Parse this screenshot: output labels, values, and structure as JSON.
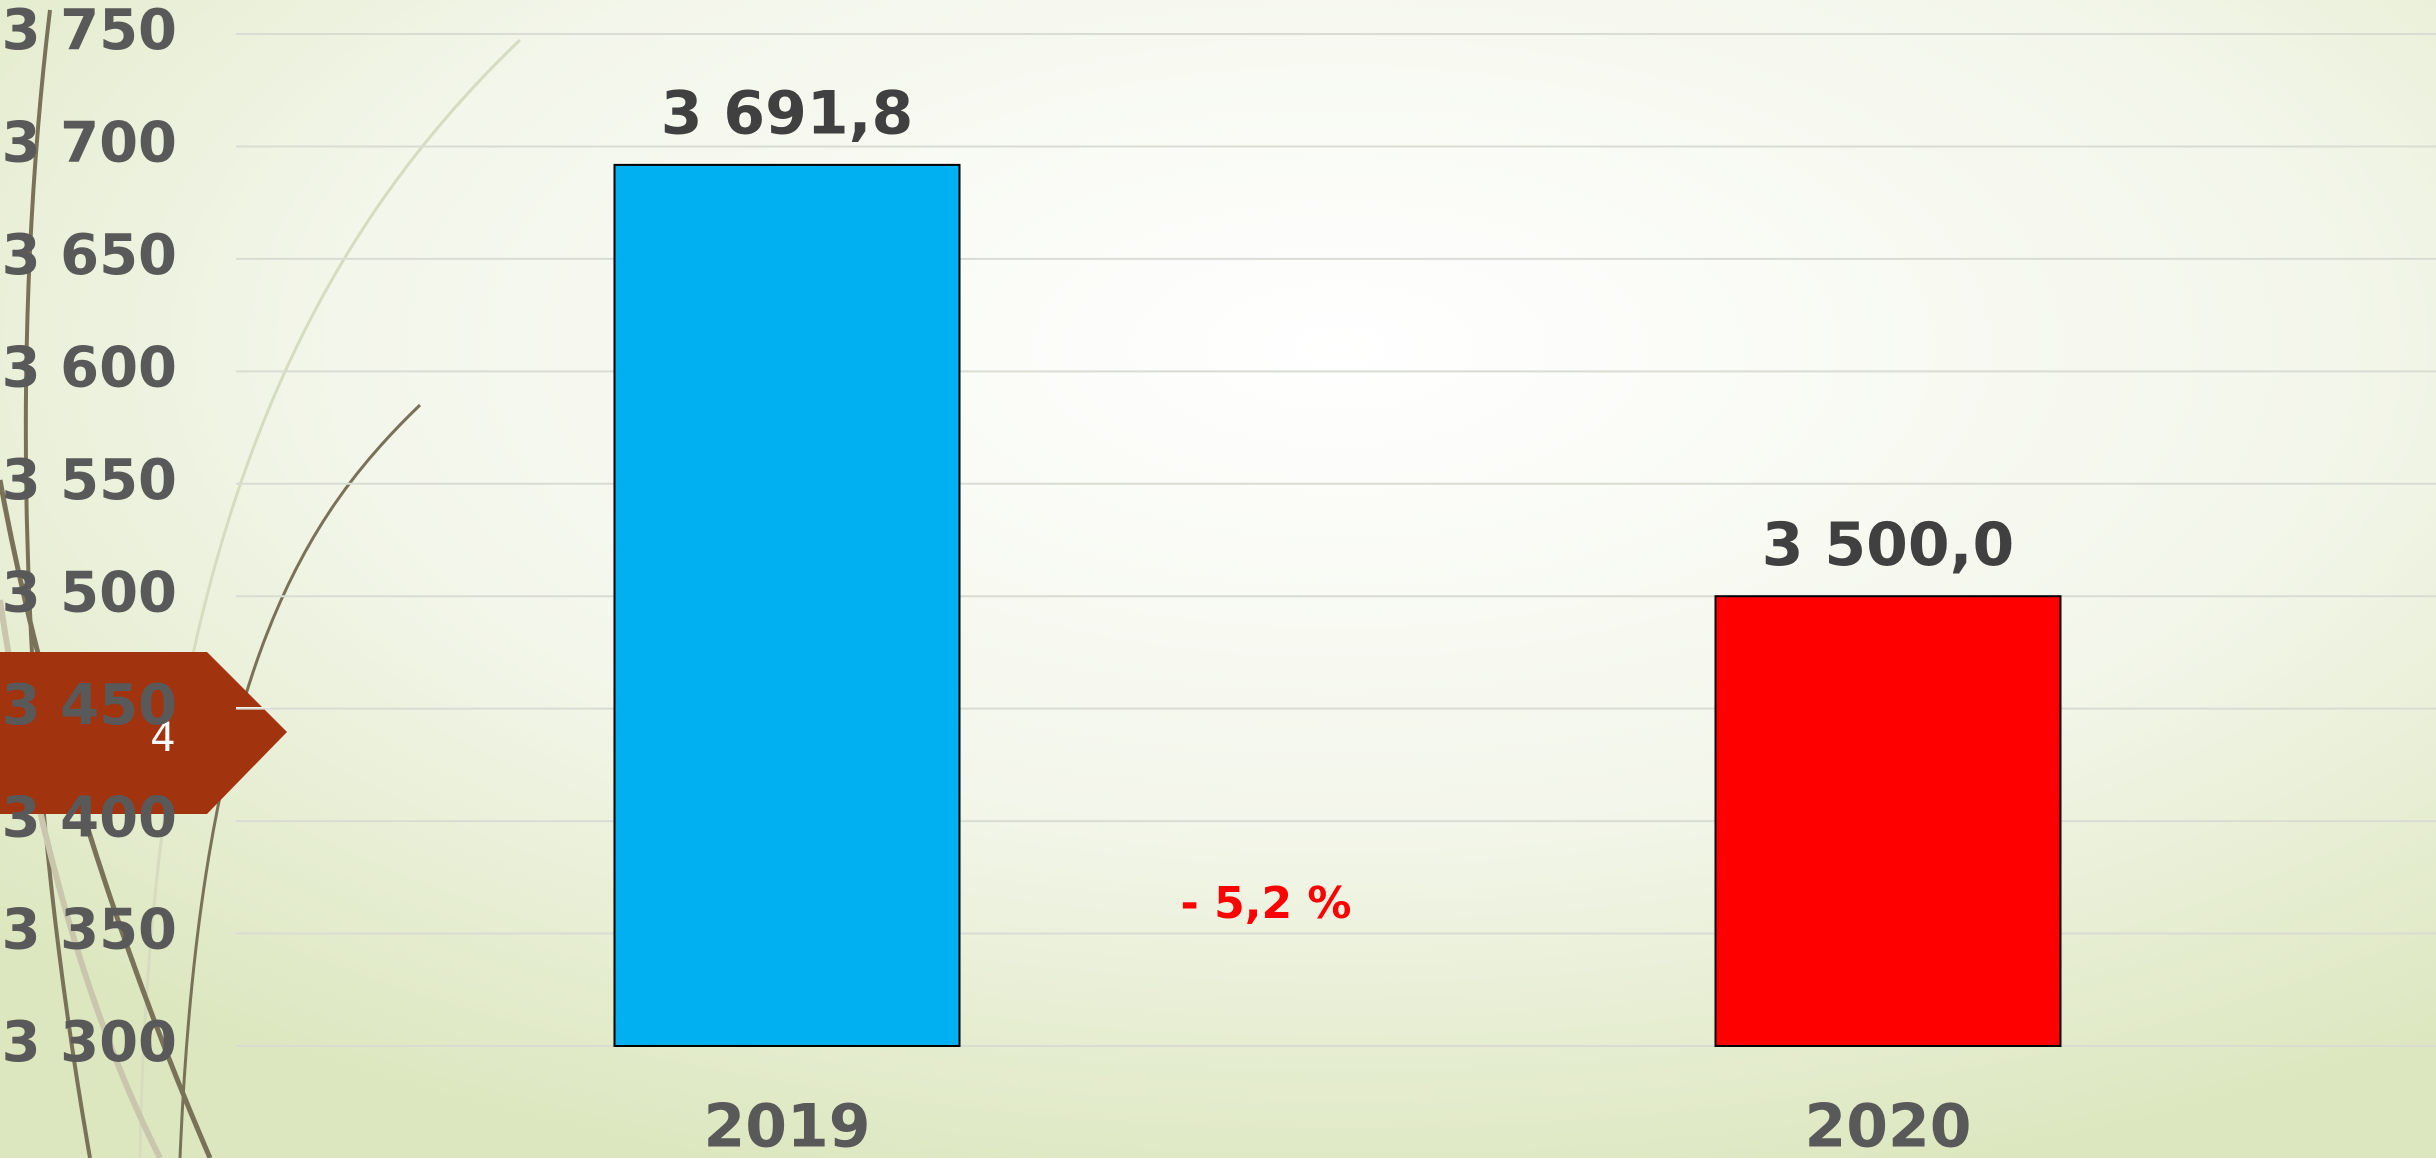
{
  "chart_data": {
    "type": "bar",
    "categories": [
      "2019",
      "2020"
    ],
    "values": [
      3691.8,
      3500.0
    ],
    "value_labels": [
      "3 691,8",
      "3 500,0"
    ],
    "colors": [
      "#00b0f0",
      "#ff0000"
    ],
    "ylim": [
      3300,
      3750
    ],
    "yticks": [
      {
        "value": 3300,
        "label": "3 300"
      },
      {
        "value": 3350,
        "label": "3 350"
      },
      {
        "value": 3400,
        "label": "3 400"
      },
      {
        "value": 3450,
        "label": "3 450"
      },
      {
        "value": 3500,
        "label": "3 500"
      },
      {
        "value": 3550,
        "label": "3 550"
      },
      {
        "value": 3600,
        "label": "3 600"
      },
      {
        "value": 3650,
        "label": "3 650"
      },
      {
        "value": 3700,
        "label": "3 700"
      },
      {
        "value": 3750,
        "label": "3 750"
      }
    ],
    "grid": true,
    "annotation": "- 5,2 %"
  },
  "slide_number": "4"
}
